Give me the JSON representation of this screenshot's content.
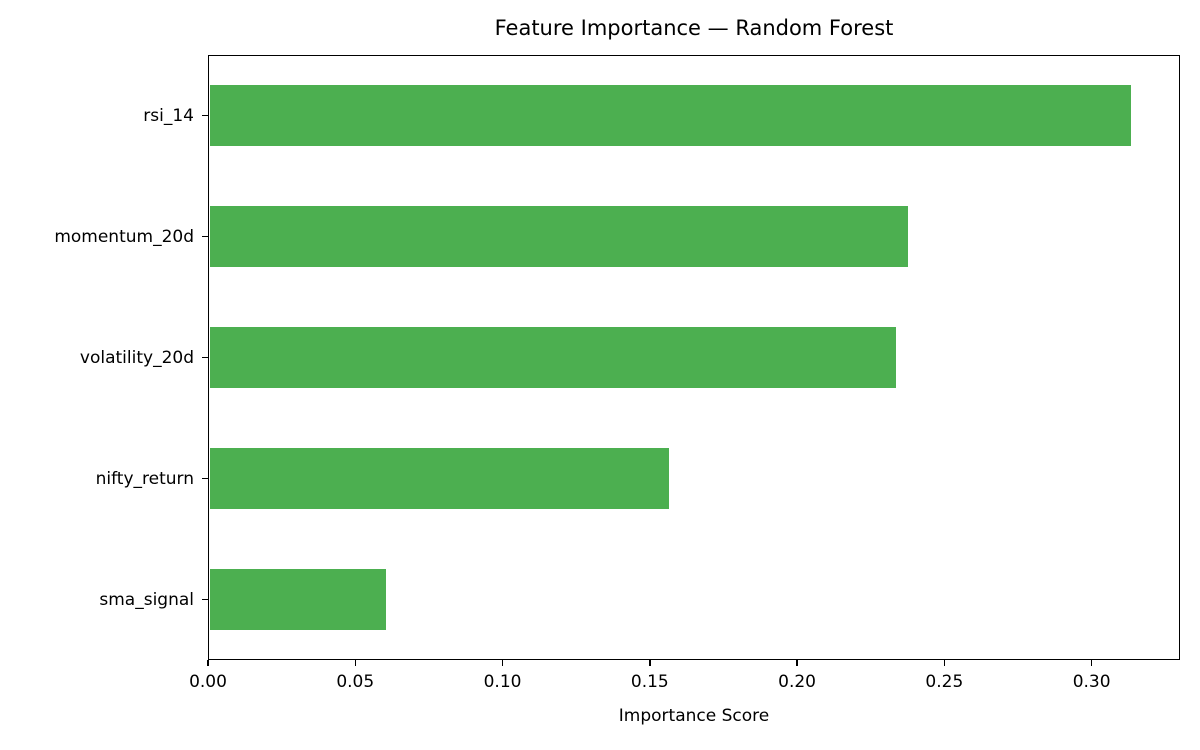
{
  "chart_data": {
    "type": "bar",
    "orientation": "horizontal",
    "title": "Feature Importance — Random Forest",
    "xlabel": "Importance Score",
    "ylabel": "",
    "categories": [
      "rsi_14",
      "momentum_20d",
      "volatility_20d",
      "nifty_return",
      "sma_signal"
    ],
    "values": [
      0.313,
      0.237,
      0.233,
      0.156,
      0.06
    ],
    "xlim": [
      0,
      0.33
    ],
    "xticks": [
      {
        "value": 0.0,
        "label": "0.00"
      },
      {
        "value": 0.05,
        "label": "0.05"
      },
      {
        "value": 0.1,
        "label": "0.10"
      },
      {
        "value": 0.15,
        "label": "0.15"
      },
      {
        "value": 0.2,
        "label": "0.20"
      },
      {
        "value": 0.25,
        "label": "0.25"
      },
      {
        "value": 0.3,
        "label": "0.30"
      }
    ],
    "bar_color": "#4caf50",
    "grid": false,
    "legend": null
  }
}
